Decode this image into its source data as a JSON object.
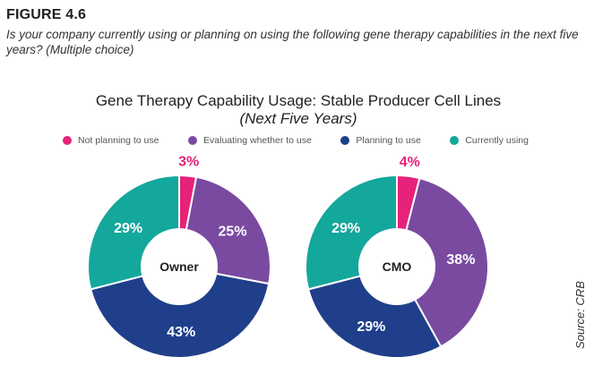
{
  "figure_label": "FIGURE 4.6",
  "question": "Is your company currently using or planning on using the following gene therapy capabilities in the next five years? (Multiple choice)",
  "source": "Source: CRB",
  "colors": {
    "not_planning": "#e6227a",
    "evaluating": "#7a4aa0",
    "planning": "#1f3f8a",
    "currently": "#14a79b"
  },
  "chart_data": {
    "type": "pie",
    "title": "Gene Therapy Capability Usage: Stable Producer Cell Lines",
    "subtitle": "(Next Five Years)",
    "legend": [
      {
        "name": "Not planning to use",
        "color": "#e6227a"
      },
      {
        "name": "Evaluating whether to use",
        "color": "#7a4aa0"
      },
      {
        "name": "Planning to use",
        "color": "#1f3f8a"
      },
      {
        "name": "Currently using",
        "color": "#14a79b"
      }
    ],
    "charts": [
      {
        "center_label": "Owner",
        "values": [
          3,
          25,
          43,
          29
        ],
        "labels": [
          "3%",
          "25%",
          "43%",
          "29%"
        ]
      },
      {
        "center_label": "CMO",
        "values": [
          4,
          38,
          29,
          29
        ],
        "labels": [
          "4%",
          "38%",
          "29%",
          "29%"
        ]
      }
    ]
  }
}
